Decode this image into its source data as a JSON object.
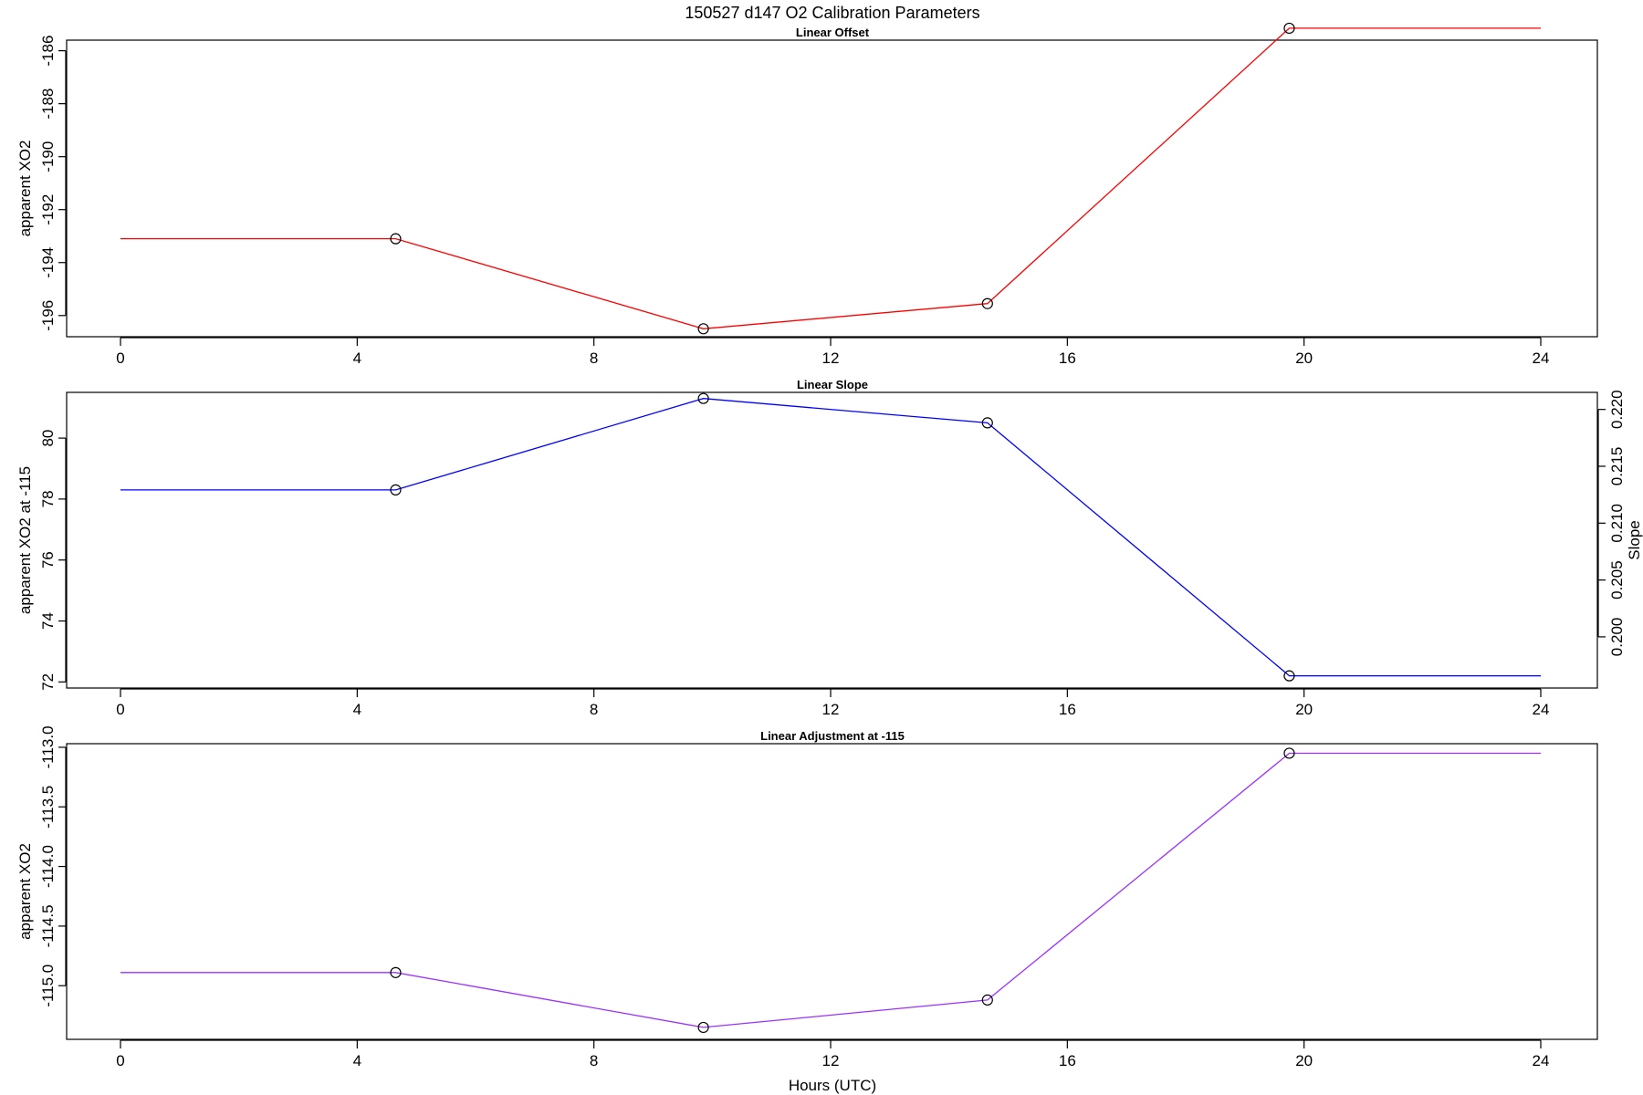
{
  "figure": {
    "title": "150527   d147   O2 Calibration Parameters"
  },
  "chart_data": [
    {
      "type": "line",
      "title": "Linear Offset",
      "xlabel": "",
      "ylabel": "apparent XO2",
      "xlim": [
        0,
        24
      ],
      "x_ticks": [
        0,
        4,
        8,
        12,
        16,
        20,
        24
      ],
      "ylim": [
        -196.8,
        -185.6
      ],
      "y_ticks": [
        -196,
        -194,
        -192,
        -190,
        -188,
        -186
      ],
      "y_tick_labels": [
        "-196",
        "-194",
        "-192",
        "-190",
        "-188",
        "-186"
      ],
      "color": "#ff0000",
      "x": [
        0,
        4.65,
        9.85,
        14.65,
        19.75,
        24
      ],
      "y": [
        -193.1,
        -193.1,
        -196.5,
        -195.55,
        -185.15,
        -185.15
      ],
      "markers": [
        {
          "x": 4.65,
          "y": -193.1
        },
        {
          "x": 9.85,
          "y": -196.5
        },
        {
          "x": 14.65,
          "y": -195.55
        },
        {
          "x": 19.75,
          "y": -185.15
        }
      ]
    },
    {
      "type": "line",
      "title": "Linear Slope",
      "xlabel": "",
      "ylabel": "apparent XO2 at -115",
      "ylabel_right": "Slope",
      "xlim": [
        0,
        24
      ],
      "x_ticks": [
        0,
        4,
        8,
        12,
        16,
        20,
        24
      ],
      "ylim": [
        71.8,
        81.5
      ],
      "y_ticks": [
        72,
        74,
        76,
        78,
        80
      ],
      "y_tick_labels": [
        "72",
        "74",
        "76",
        "78",
        "80"
      ],
      "right_axis": {
        "ylim": [
          0.1955,
          0.2215
        ],
        "ticks": [
          0.2,
          0.205,
          0.21,
          0.215,
          0.22
        ],
        "tick_labels": [
          "0.200",
          "0.205",
          "0.210",
          "0.215",
          "0.220"
        ]
      },
      "color": "#0000ff",
      "x": [
        0,
        4.65,
        9.85,
        14.65,
        19.75,
        24
      ],
      "y": [
        78.3,
        78.3,
        81.3,
        80.5,
        72.2,
        72.2
      ],
      "markers": [
        {
          "x": 4.65,
          "y": 78.3
        },
        {
          "x": 9.85,
          "y": 81.3
        },
        {
          "x": 14.65,
          "y": 80.5
        },
        {
          "x": 19.75,
          "y": 72.2
        }
      ]
    },
    {
      "type": "line",
      "title": "Linear Adjustment at -115",
      "xlabel": "Hours (UTC)",
      "ylabel": "apparent XO2",
      "xlim": [
        0,
        24
      ],
      "x_ticks": [
        0,
        4,
        8,
        12,
        16,
        20,
        24
      ],
      "ylim": [
        -115.45,
        -112.97
      ],
      "y_ticks": [
        -115,
        -114.5,
        -114,
        -113.5,
        -113
      ],
      "y_tick_labels": [
        "-115.0",
        "-114.5",
        "-114.0",
        "-113.5",
        "-113.0"
      ],
      "color": "#9b30ff",
      "x": [
        0,
        4.65,
        9.85,
        14.65,
        19.75,
        24
      ],
      "y": [
        -114.89,
        -114.89,
        -115.35,
        -115.12,
        -113.05,
        -113.05
      ],
      "markers": [
        {
          "x": 4.65,
          "y": -114.89
        },
        {
          "x": 9.85,
          "y": -115.35
        },
        {
          "x": 14.65,
          "y": -115.12
        },
        {
          "x": 19.75,
          "y": -113.05
        }
      ]
    }
  ]
}
